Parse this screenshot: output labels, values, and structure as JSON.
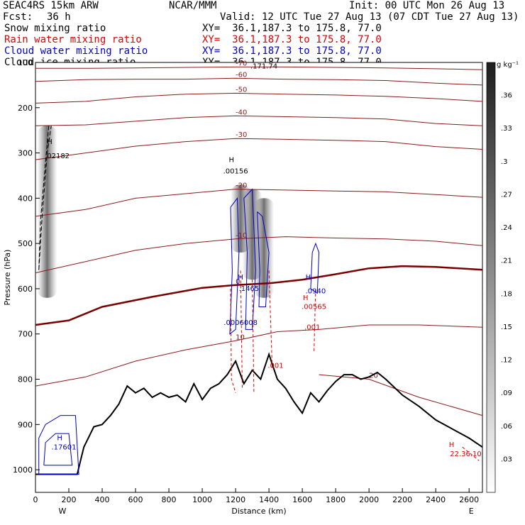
{
  "header": {
    "model": "SEAC4RS 15km ARW",
    "org": "NCAR/MMM",
    "init": "Init: 00 UTC Mon 26 Aug 13",
    "fcst_label": "Fcst:",
    "fcst_value": "36 h",
    "valid": "Valid: 12 UTC Tue 27 Aug 13 (07 CDT Tue 27 Aug 13)"
  },
  "legend": [
    {
      "label": "Snow mixing ratio",
      "xy": "XY=  36.1,187.3 to 175.8, 77.0",
      "color": "#000000"
    },
    {
      "label": "Rain water mixing ratio",
      "xy": "XY=  36.1,187.3 to 175.8, 77.0",
      "color": "#dd0000"
    },
    {
      "label": "Cloud water mixing ratio",
      "xy": "XY=  36.1,187.3 to 175.8, 77.0",
      "color": "#0000cc"
    },
    {
      "label": "Cloud ice mixing ratio",
      "xy": "XY=  36.1,187.3 to 175.8, 77.0",
      "color": "#000000"
    }
  ],
  "chart_data": {
    "type": "cross-section",
    "xlabel": "Distance (km)",
    "ylabel": "Pressure (hPa)",
    "xlim": [
      0,
      2680
    ],
    "ylim": [
      100,
      1050
    ],
    "x_ticks": [
      0,
      200,
      400,
      600,
      800,
      1000,
      1200,
      1400,
      1600,
      1800,
      2000,
      2200,
      2400,
      2600
    ],
    "y_ticks": [
      100,
      200,
      300,
      400,
      500,
      600,
      700,
      800,
      900,
      1000
    ],
    "x_end_labels": {
      "left": "W",
      "right": "E"
    },
    "colorbar": {
      "unit": "g kg⁻¹",
      "ticks": [
        ".03",
        ".06",
        ".09",
        ".12",
        ".15",
        ".18",
        ".21",
        ".24",
        ".27",
        ".3",
        ".33",
        ".36"
      ]
    },
    "temperature_contours": [
      {
        "value": -70,
        "label": "-70",
        "points": [
          [
            0,
            113
          ],
          [
            300,
            113
          ],
          [
            600,
            112
          ],
          [
            900,
            111
          ],
          [
            1200,
            110
          ],
          [
            1500,
            110
          ],
          [
            1800,
            111
          ],
          [
            2100,
            112
          ],
          [
            2400,
            114
          ],
          [
            2680,
            116
          ]
        ]
      },
      {
        "value": -60,
        "label": "-60",
        "points": [
          [
            0,
            142
          ],
          [
            300,
            138
          ],
          [
            600,
            137
          ],
          [
            900,
            137
          ],
          [
            1200,
            135
          ],
          [
            1500,
            137
          ],
          [
            1800,
            138
          ],
          [
            2100,
            140
          ],
          [
            2400,
            146
          ],
          [
            2680,
            150
          ]
        ]
      },
      {
        "value": -50,
        "label": "-50",
        "points": [
          [
            0,
            190
          ],
          [
            300,
            186
          ],
          [
            600,
            176
          ],
          [
            900,
            170
          ],
          [
            1200,
            168
          ],
          [
            1500,
            170
          ],
          [
            1800,
            172
          ],
          [
            2100,
            175
          ],
          [
            2400,
            180
          ],
          [
            2680,
            186
          ]
        ]
      },
      {
        "value": -40,
        "label": "-40",
        "points": [
          [
            0,
            240
          ],
          [
            300,
            238
          ],
          [
            600,
            230
          ],
          [
            900,
            222
          ],
          [
            1200,
            218
          ],
          [
            1500,
            220
          ],
          [
            1800,
            222
          ],
          [
            2100,
            225
          ],
          [
            2400,
            235
          ],
          [
            2680,
            240
          ]
        ]
      },
      {
        "value": -30,
        "label": "-30",
        "points": [
          [
            0,
            315
          ],
          [
            300,
            300
          ],
          [
            600,
            285
          ],
          [
            900,
            275
          ],
          [
            1200,
            268
          ],
          [
            1500,
            270
          ],
          [
            1800,
            272
          ],
          [
            2100,
            275
          ],
          [
            2400,
            286
          ],
          [
            2680,
            292
          ]
        ]
      },
      {
        "value": -20,
        "label": "-20",
        "points": [
          [
            0,
            440
          ],
          [
            300,
            425
          ],
          [
            600,
            400
          ],
          [
            900,
            390
          ],
          [
            1200,
            380
          ],
          [
            1500,
            382
          ],
          [
            1800,
            384
          ],
          [
            2100,
            386
          ],
          [
            2400,
            392
          ],
          [
            2680,
            398
          ]
        ]
      },
      {
        "value": -10,
        "label": "-10",
        "points": [
          [
            0,
            565
          ],
          [
            300,
            540
          ],
          [
            600,
            515
          ],
          [
            900,
            500
          ],
          [
            1200,
            490
          ],
          [
            1500,
            485
          ],
          [
            1800,
            488
          ],
          [
            2100,
            490
          ],
          [
            2400,
            495
          ],
          [
            2680,
            505
          ]
        ]
      },
      {
        "value": 0,
        "label": "0",
        "points": [
          [
            0,
            680
          ],
          [
            200,
            670
          ],
          [
            400,
            640
          ],
          [
            700,
            618
          ],
          [
            1000,
            598
          ],
          [
            1200,
            592
          ],
          [
            1400,
            588
          ],
          [
            1600,
            580
          ],
          [
            1800,
            568
          ],
          [
            2000,
            555
          ],
          [
            2200,
            550
          ],
          [
            2400,
            552
          ],
          [
            2680,
            558
          ]
        ]
      },
      {
        "value": 10,
        "label": "10",
        "points": [
          [
            0,
            815
          ],
          [
            300,
            795
          ],
          [
            600,
            760
          ],
          [
            900,
            735
          ],
          [
            1200,
            715
          ],
          [
            1450,
            695
          ],
          [
            1700,
            690
          ],
          [
            2000,
            680
          ],
          [
            2300,
            680
          ],
          [
            2680,
            685
          ]
        ]
      },
      {
        "value": 20,
        "label": "20",
        "points": [
          [
            1700,
            790
          ],
          [
            2000,
            800
          ],
          [
            2300,
            840
          ],
          [
            2680,
            880
          ]
        ]
      }
    ],
    "terrain_pressure": [
      [
        0,
        1010
      ],
      [
        250,
        1010
      ],
      [
        290,
        950
      ],
      [
        350,
        905
      ],
      [
        400,
        900
      ],
      [
        450,
        880
      ],
      [
        500,
        855
      ],
      [
        550,
        815
      ],
      [
        600,
        830
      ],
      [
        650,
        820
      ],
      [
        700,
        840
      ],
      [
        750,
        830
      ],
      [
        800,
        840
      ],
      [
        850,
        835
      ],
      [
        900,
        850
      ],
      [
        950,
        810
      ],
      [
        1000,
        845
      ],
      [
        1050,
        820
      ],
      [
        1100,
        810
      ],
      [
        1150,
        790
      ],
      [
        1200,
        760
      ],
      [
        1250,
        810
      ],
      [
        1300,
        780
      ],
      [
        1350,
        800
      ],
      [
        1400,
        745
      ],
      [
        1450,
        800
      ],
      [
        1500,
        820
      ],
      [
        1550,
        850
      ],
      [
        1600,
        875
      ],
      [
        1650,
        830
      ],
      [
        1700,
        850
      ],
      [
        1750,
        825
      ],
      [
        1800,
        805
      ],
      [
        1850,
        790
      ],
      [
        1900,
        790
      ],
      [
        1950,
        800
      ],
      [
        2000,
        795
      ],
      [
        2050,
        785
      ],
      [
        2100,
        800
      ],
      [
        2200,
        835
      ],
      [
        2300,
        860
      ],
      [
        2400,
        890
      ],
      [
        2500,
        910
      ],
      [
        2600,
        930
      ],
      [
        2680,
        950
      ]
    ],
    "extrema_labels": [
      {
        "text": "H",
        "x": 85,
        "p": 280,
        "color": "#000000"
      },
      {
        "text": ".02182",
        "x": 130,
        "p": 312,
        "color": "#000000"
      },
      {
        "text": "H",
        "x": 1175,
        "p": 320,
        "color": "#000000"
      },
      {
        "text": ".00156",
        "x": 1200,
        "p": 345,
        "color": "#000000"
      },
      {
        "text": ".171.74",
        "x": 1370,
        "p": 113,
        "color": "#000000"
      },
      {
        "text": "H",
        "x": 1230,
        "p": 580,
        "color": "#0000cc"
      },
      {
        "text": ".1465",
        "x": 1280,
        "p": 605,
        "color": "#0000cc"
      },
      {
        "text": ".0006008",
        "x": 1230,
        "p": 680,
        "color": "#0000cc"
      },
      {
        "text": "H",
        "x": 1635,
        "p": 580,
        "color": "#0000cc"
      },
      {
        "text": ".0940",
        "x": 1680,
        "p": 610,
        "color": "#0000cc"
      },
      {
        "text": "H",
        "x": 1620,
        "p": 625,
        "color": "#dd0000"
      },
      {
        "text": ".00565",
        "x": 1670,
        "p": 645,
        "color": "#dd0000"
      },
      {
        "text": ".001",
        "x": 1660,
        "p": 690,
        "color": "#dd0000"
      },
      {
        "text": ".001",
        "x": 1440,
        "p": 775,
        "color": "#dd0000"
      },
      {
        "text": "H",
        "x": 145,
        "p": 935,
        "color": "#0000cc"
      },
      {
        "text": ".17601",
        "x": 170,
        "p": 955,
        "color": "#0000cc"
      },
      {
        "text": "H",
        "x": 2495,
        "p": 950,
        "color": "#dd0000"
      },
      {
        "text": "22.36.10",
        "x": 2580,
        "p": 970,
        "color": "#dd0000"
      }
    ]
  }
}
